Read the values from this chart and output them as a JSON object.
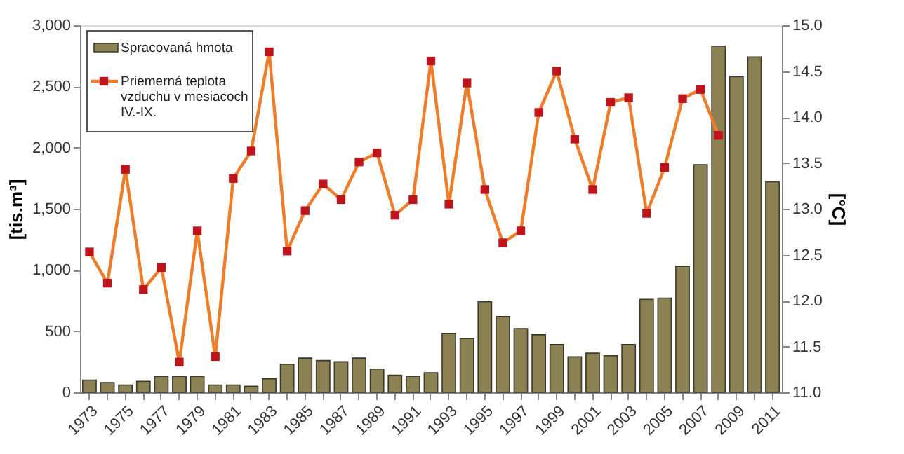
{
  "chart_data": {
    "type": "bar",
    "categories": [
      "1973",
      null,
      "1975",
      null,
      "1977",
      null,
      "1979",
      null,
      "1981",
      null,
      "1983",
      null,
      "1985",
      null,
      "1987",
      null,
      "1989",
      null,
      "1991",
      null,
      "1993",
      null,
      "1995",
      null,
      "1997",
      null,
      "1999",
      null,
      "2001",
      null,
      "2003",
      null,
      "2005",
      null,
      "2007",
      null,
      "2009",
      null,
      "2011"
    ],
    "series": [
      {
        "name": "Spracovaná hmota",
        "color": "#8c8152",
        "values": [
          100,
          80,
          60,
          90,
          130,
          130,
          130,
          60,
          60,
          50,
          110,
          230,
          280,
          260,
          250,
          280,
          190,
          140,
          130,
          160,
          480,
          440,
          740,
          620,
          520,
          470,
          390,
          290,
          320,
          300,
          390,
          760,
          770,
          1030,
          1860,
          2830,
          2580,
          2740,
          1720
        ]
      },
      {
        "name": "Priemerná teplota vzduchu v mesiacoch IV.-IX.",
        "type": "line",
        "axis": "y2",
        "color": "#f07c28",
        "marker": "square",
        "values": [
          12.53,
          12.19,
          13.43,
          12.12,
          12.36,
          11.33,
          12.76,
          11.39,
          13.33,
          13.63,
          14.71,
          12.54,
          12.98,
          13.27,
          13.1,
          13.51,
          13.61,
          12.93,
          13.1,
          14.61,
          13.05,
          14.37,
          13.21,
          12.63,
          12.76,
          14.05,
          14.5,
          13.76,
          13.21,
          14.16,
          14.21,
          12.95,
          13.45,
          14.2,
          14.3,
          13.8,
          null,
          null,
          null
        ]
      }
    ],
    "ylabel": "[tis.m³]",
    "y2label": "[°C]",
    "ylim": [
      0,
      3000
    ],
    "yticks": [
      0,
      500,
      {
        "value": 1000,
        "label": "1,000"
      },
      {
        "value": 1500,
        "label": "1,500"
      },
      {
        "value": 2000,
        "label": "2,000"
      },
      {
        "value": 2500,
        "label": "2,500"
      },
      {
        "value": 3000,
        "label": "3,000"
      }
    ],
    "y2lim": [
      11,
      15
    ],
    "y2ticks": [
      {
        "value": 11,
        "label": "11.0"
      },
      {
        "value": 11.5,
        "label": "11.5"
      },
      {
        "value": 12,
        "label": "12.0"
      },
      {
        "value": 12.5,
        "label": "12.5"
      },
      {
        "value": 13,
        "label": "13.0"
      },
      {
        "value": 13.5,
        "label": "13.5"
      },
      {
        "value": 14,
        "label": "14.0"
      },
      {
        "value": 14.5,
        "label": "14.5"
      },
      {
        "value": 15,
        "label": "15.0"
      }
    ],
    "grid": false,
    "legend": "top left"
  }
}
